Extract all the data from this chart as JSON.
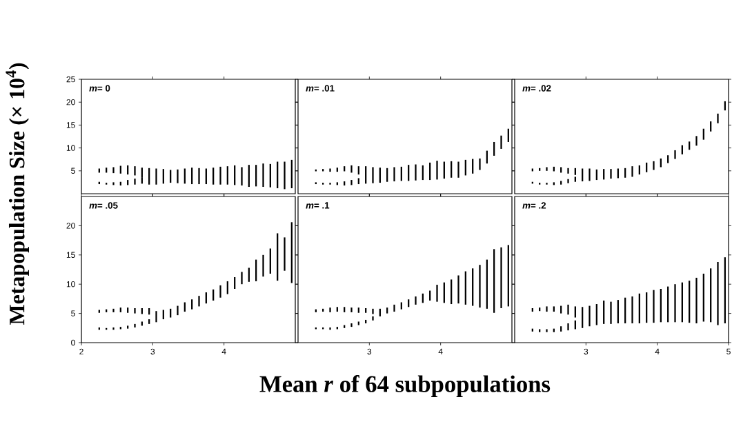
{
  "chart_data": [
    {
      "type": "bar",
      "ylabel": "Metapopulation Size (× 10$^{4}$)",
      "annotations": [
        "*m*= 0"
      ],
      "xlim": [
        2,
        5
      ],
      "ylim": [
        0,
        25
      ],
      "xticks": [
        3,
        4
      ],
      "yticks": [
        5,
        10,
        15,
        20,
        25
      ],
      "tick_labels": "y",
      "series": [
        {
          "color": "#000000",
          "x": [
            2.25,
            2.35,
            2.45,
            2.55,
            2.65,
            2.75,
            2.85,
            2.95,
            3.05,
            3.15,
            3.25,
            3.35,
            3.45,
            3.55,
            3.65,
            3.75,
            3.85,
            3.95,
            4.05,
            4.15,
            4.25,
            4.35,
            4.45,
            4.55,
            4.65,
            4.75,
            4.85,
            4.95
          ],
          "base": [
            4.6,
            4.6,
            4.5,
            4.4,
            4.2,
            4.0,
            3.6,
            2.0,
            2.0,
            2.2,
            2.4,
            2.3,
            2.2,
            2.1,
            2.1,
            2.1,
            2.0,
            2.0,
            2.0,
            1.9,
            1.8,
            1.5,
            1.6,
            1.5,
            1.4,
            1.2,
            1.0,
            1.2
          ],
          "values": [
            0.9,
            1.1,
            1.3,
            1.7,
            2.0,
            2.0,
            2.1,
            3.6,
            3.5,
            3.2,
            2.8,
            3.0,
            3.3,
            3.6,
            3.5,
            3.4,
            3.7,
            3.9,
            4.0,
            4.3,
            4.0,
            4.8,
            4.7,
            5.1,
            5.1,
            5.8,
            6.0,
            6.2
          ]
        },
        {
          "color": "#000000",
          "x": [
            2.25,
            2.35,
            2.45,
            2.55,
            2.65,
            2.75,
            2.85
          ],
          "base": [
            2.1,
            2.0,
            1.9,
            1.8,
            1.9,
            2.0,
            2.2
          ],
          "values": [
            0.5,
            0.4,
            0.6,
            0.8,
            1.1,
            1.3,
            1.4
          ]
        }
      ]
    },
    {
      "type": "bar",
      "annotations": [
        "*m*= .01"
      ],
      "xlim": [
        2,
        5
      ],
      "ylim": [
        0,
        25
      ],
      "xticks": [
        3,
        4
      ],
      "yticks": [
        5,
        10,
        15,
        20,
        25
      ],
      "tick_labels": false,
      "series": [
        {
          "color": "#000000",
          "x": [
            2.25,
            2.35,
            2.45,
            2.55,
            2.65,
            2.75,
            2.85,
            2.95,
            3.05,
            3.15,
            3.25,
            3.35,
            3.45,
            3.55,
            3.65,
            3.75,
            3.85,
            3.95,
            4.05,
            4.15,
            4.25,
            4.35,
            4.45,
            4.55,
            4.65,
            4.75,
            4.85,
            4.95
          ],
          "base": [
            4.9,
            4.9,
            4.8,
            4.8,
            4.9,
            4.6,
            4.2,
            2.2,
            2.3,
            2.4,
            2.6,
            2.7,
            2.8,
            2.8,
            2.9,
            3.0,
            3.0,
            3.1,
            3.3,
            3.5,
            3.5,
            4.0,
            4.4,
            5.2,
            6.6,
            8.3,
            9.8,
            11.3
          ],
          "values": [
            0.4,
            0.5,
            0.7,
            0.9,
            1.1,
            1.6,
            1.8,
            3.8,
            3.5,
            3.3,
            3.0,
            3.1,
            3.1,
            3.5,
            3.5,
            3.2,
            3.8,
            4.1,
            3.7,
            3.6,
            3.5,
            3.4,
            3.2,
            2.5,
            2.8,
            3.0,
            2.9,
            2.9
          ]
        },
        {
          "color": "#000000",
          "x": [
            2.25,
            2.35,
            2.45,
            2.55,
            2.65,
            2.75,
            2.85
          ],
          "base": [
            2.1,
            2.0,
            2.0,
            1.9,
            1.8,
            1.9,
            2.1
          ],
          "values": [
            0.4,
            0.4,
            0.4,
            0.6,
            0.9,
            1.1,
            1.3
          ]
        }
      ]
    },
    {
      "type": "bar",
      "annotations": [
        "*m*= .02"
      ],
      "xlim": [
        2,
        5
      ],
      "ylim": [
        0,
        25
      ],
      "xticks": [
        3,
        4
      ],
      "yticks": [
        5,
        10,
        15,
        20,
        25
      ],
      "tick_labels": false,
      "series": [
        {
          "color": "#000000",
          "x": [
            2.25,
            2.35,
            2.45,
            2.55,
            2.65,
            2.75,
            2.85,
            2.95,
            3.05,
            3.15,
            3.25,
            3.35,
            3.45,
            3.55,
            3.65,
            3.75,
            3.85,
            3.95,
            4.05,
            4.15,
            4.25,
            4.35,
            4.45,
            4.55,
            4.65,
            4.75,
            4.85,
            4.95
          ],
          "base": [
            4.9,
            5.0,
            5.0,
            4.9,
            4.6,
            4.4,
            4.1,
            2.7,
            2.8,
            3.0,
            3.1,
            3.3,
            3.4,
            3.5,
            3.7,
            4.2,
            4.7,
            5.2,
            5.8,
            6.7,
            7.6,
            8.6,
            9.6,
            10.5,
            11.8,
            13.6,
            15.4,
            18.2
          ],
          "values": [
            0.6,
            0.6,
            0.8,
            1.0,
            1.2,
            1.2,
            1.5,
            2.8,
            2.7,
            2.3,
            2.3,
            2.1,
            2.1,
            2.1,
            2.3,
            2.0,
            2.1,
            1.9,
            1.9,
            1.7,
            1.9,
            2.0,
            1.8,
            2.1,
            2.4,
            2.2,
            2.1,
            2.0
          ]
        },
        {
          "color": "#000000",
          "x": [
            2.25,
            2.35,
            2.45,
            2.55,
            2.65,
            2.75,
            2.85
          ],
          "base": [
            2.2,
            2.0,
            2.0,
            1.9,
            2.0,
            2.3,
            2.6
          ],
          "values": [
            0.4,
            0.4,
            0.4,
            0.6,
            0.8,
            0.9,
            1.1
          ]
        }
      ]
    },
    {
      "type": "bar",
      "annotations": [
        "*m*= .05"
      ],
      "xlim": [
        2,
        5
      ],
      "ylim": [
        0,
        25
      ],
      "xticks": [
        2,
        3,
        4
      ],
      "yticks": [
        0,
        5,
        10,
        15,
        20
      ],
      "series": [
        {
          "color": "#000000",
          "x": [
            2.25,
            2.35,
            2.45,
            2.55,
            2.65,
            2.75,
            2.85,
            2.95,
            3.05,
            3.15,
            3.25,
            3.35,
            3.45,
            3.55,
            3.65,
            3.75,
            3.85,
            3.95,
            4.05,
            4.15,
            4.25,
            4.35,
            4.45,
            4.55,
            4.65,
            4.75,
            4.85,
            4.95
          ],
          "base": [
            5.1,
            5.2,
            5.2,
            5.2,
            5.1,
            5.0,
            4.9,
            4.8,
            3.5,
            4.0,
            4.3,
            4.7,
            5.3,
            5.7,
            6.2,
            6.7,
            7.2,
            7.7,
            8.3,
            9.2,
            10.0,
            10.4,
            10.5,
            11.3,
            11.8,
            10.6,
            12.3,
            10.2
          ],
          "values": [
            0.5,
            0.5,
            0.6,
            0.8,
            0.9,
            0.9,
            1.0,
            1.1,
            1.9,
            1.6,
            1.5,
            1.6,
            1.6,
            1.7,
            1.8,
            1.9,
            1.9,
            2.1,
            2.2,
            2.0,
            2.1,
            2.4,
            3.7,
            3.7,
            4.3,
            8.1,
            5.7,
            10.4
          ]
        },
        {
          "color": "#000000",
          "x": [
            2.25,
            2.35,
            2.45,
            2.55,
            2.65,
            2.75,
            2.85,
            2.95
          ],
          "base": [
            2.2,
            2.2,
            2.2,
            2.3,
            2.4,
            2.6,
            2.9,
            3.2
          ],
          "values": [
            0.4,
            0.3,
            0.4,
            0.4,
            0.5,
            0.6,
            0.7,
            0.8
          ]
        }
      ]
    },
    {
      "type": "bar",
      "xlabel": "Mean *r* of 64 subpopulations",
      "annotations": [
        "*m*= .1"
      ],
      "xlim": [
        2,
        5
      ],
      "ylim": [
        0,
        25
      ],
      "xticks": [
        3,
        4
      ],
      "yticks": [
        0,
        5,
        10,
        15,
        20
      ],
      "tick_labels": "x",
      "series": [
        {
          "color": "#000000",
          "x": [
            2.25,
            2.35,
            2.45,
            2.55,
            2.65,
            2.75,
            2.85,
            2.95,
            3.05,
            3.15,
            3.25,
            3.35,
            3.45,
            3.55,
            3.65,
            3.75,
            3.85,
            3.95,
            4.05,
            4.15,
            4.25,
            4.35,
            4.45,
            4.55,
            4.65,
            4.75,
            4.85,
            4.95
          ],
          "base": [
            5.2,
            5.3,
            5.2,
            5.3,
            5.2,
            5.2,
            5.1,
            5.1,
            4.9,
            4.5,
            5.0,
            5.3,
            5.7,
            6.1,
            6.5,
            6.8,
            7.2,
            7.0,
            6.8,
            6.6,
            6.7,
            6.5,
            6.3,
            6.0,
            5.8,
            5.1,
            5.9,
            6.2
          ],
          "values": [
            0.5,
            0.5,
            0.8,
            0.8,
            0.9,
            0.8,
            0.9,
            0.8,
            0.9,
            1.3,
            1.0,
            1.2,
            1.2,
            1.3,
            1.4,
            1.6,
            1.7,
            2.9,
            3.5,
            4.2,
            4.8,
            5.7,
            6.4,
            7.3,
            8.4,
            10.9,
            10.4,
            10.5
          ]
        },
        {
          "color": "#000000",
          "x": [
            2.25,
            2.35,
            2.45,
            2.55,
            2.65,
            2.75,
            2.85,
            2.95,
            3.05
          ],
          "base": [
            2.3,
            2.3,
            2.2,
            2.3,
            2.5,
            2.7,
            3.0,
            3.3,
            3.8
          ],
          "values": [
            0.3,
            0.3,
            0.4,
            0.4,
            0.5,
            0.6,
            0.6,
            0.6,
            0.7
          ]
        }
      ]
    },
    {
      "type": "bar",
      "annotations": [
        "*m*= .2"
      ],
      "xlim": [
        2,
        5
      ],
      "ylim": [
        0,
        25
      ],
      "xticks": [
        3,
        4,
        5
      ],
      "yticks": [
        0,
        5,
        10,
        15,
        20
      ],
      "tick_labels": "x",
      "series": [
        {
          "color": "#000000",
          "x": [
            2.25,
            2.35,
            2.45,
            2.55,
            2.65,
            2.75,
            2.85,
            2.95,
            3.05,
            3.15,
            3.25,
            3.35,
            3.45,
            3.55,
            3.65,
            3.75,
            3.85,
            3.95,
            4.05,
            4.15,
            4.25,
            4.35,
            4.45,
            4.55,
            4.65,
            4.75,
            4.85,
            4.95
          ],
          "base": [
            5.3,
            5.4,
            5.3,
            5.3,
            5.0,
            4.8,
            4.3,
            2.5,
            2.8,
            3.0,
            3.2,
            3.2,
            3.3,
            3.3,
            3.3,
            3.3,
            3.4,
            3.4,
            3.5,
            3.5,
            3.5,
            3.5,
            3.4,
            3.3,
            3.6,
            3.5,
            3.0,
            3.3
          ],
          "values": [
            0.6,
            0.6,
            0.9,
            0.9,
            1.3,
            1.7,
            1.9,
            3.6,
            3.5,
            3.6,
            4.0,
            3.8,
            4.0,
            4.4,
            4.6,
            5.1,
            5.2,
            5.6,
            5.7,
            6.1,
            6.5,
            6.8,
            7.2,
            7.8,
            8.2,
            9.2,
            10.8,
            11.3
          ]
        },
        {
          "color": "#000000",
          "x": [
            2.25,
            2.35,
            2.45,
            2.55,
            2.65,
            2.75,
            2.85
          ],
          "base": [
            1.9,
            1.8,
            1.8,
            1.8,
            1.9,
            2.1,
            2.3
          ],
          "values": [
            0.5,
            0.5,
            0.5,
            0.6,
            0.9,
            1.2,
            1.5
          ]
        }
      ]
    }
  ]
}
